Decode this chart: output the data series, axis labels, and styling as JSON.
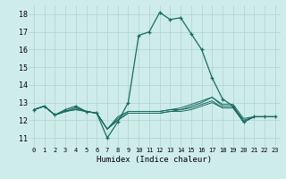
{
  "background_color": "#ceecea",
  "grid_color": "#aed4d0",
  "line_color": "#1a6b60",
  "xlabel": "Humidex (Indice chaleur)",
  "xlim": [
    -0.5,
    23.5
  ],
  "ylim": [
    10.5,
    18.5
  ],
  "yticks": [
    11,
    12,
    13,
    14,
    15,
    16,
    17,
    18
  ],
  "xticks": [
    0,
    1,
    2,
    3,
    4,
    5,
    6,
    7,
    8,
    9,
    10,
    11,
    12,
    13,
    14,
    15,
    16,
    17,
    18,
    19,
    20,
    21,
    22,
    23
  ],
  "series_main": [
    12.6,
    12.8,
    12.3,
    12.6,
    12.8,
    12.5,
    12.4,
    11.0,
    11.9,
    13.0,
    16.8,
    17.0,
    18.1,
    17.7,
    17.8,
    16.9,
    16.0,
    14.4,
    13.2,
    12.8,
    11.9,
    12.2,
    12.2,
    12.2
  ],
  "series_flat1": [
    12.6,
    12.8,
    12.3,
    12.5,
    12.7,
    12.5,
    12.4,
    11.5,
    12.2,
    12.5,
    12.5,
    12.5,
    12.5,
    12.6,
    12.7,
    12.9,
    13.1,
    13.3,
    12.9,
    12.9,
    12.1,
    12.2,
    12.2,
    12.2
  ],
  "series_flat2": [
    12.6,
    12.8,
    12.3,
    12.5,
    12.7,
    12.5,
    12.4,
    11.5,
    12.1,
    12.5,
    12.5,
    12.5,
    12.5,
    12.6,
    12.6,
    12.8,
    13.0,
    13.3,
    12.8,
    12.8,
    12.0,
    12.2,
    12.2,
    12.2
  ],
  "series_flat3": [
    12.6,
    12.8,
    12.3,
    12.5,
    12.6,
    12.5,
    12.4,
    11.5,
    12.0,
    12.4,
    12.4,
    12.4,
    12.4,
    12.5,
    12.6,
    12.7,
    12.9,
    13.1,
    12.7,
    12.7,
    11.9,
    12.2,
    12.2,
    12.2
  ],
  "series_flat4": [
    12.6,
    12.8,
    12.3,
    12.5,
    12.6,
    12.5,
    12.4,
    11.5,
    12.0,
    12.4,
    12.4,
    12.4,
    12.4,
    12.5,
    12.5,
    12.6,
    12.8,
    13.0,
    12.7,
    12.7,
    11.9,
    12.2,
    12.2,
    12.2
  ]
}
